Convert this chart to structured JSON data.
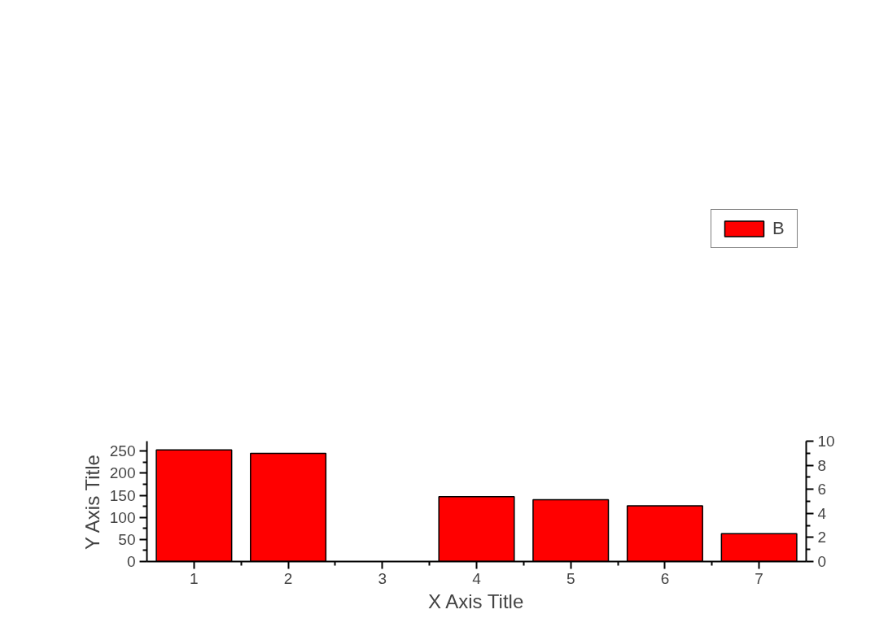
{
  "chart_data": {
    "type": "bar",
    "xlabel": "X Axis Title",
    "ylabel": "Y Axis Title",
    "x": [
      1,
      2,
      3,
      4,
      5,
      6,
      7
    ],
    "series": [
      {
        "name": "B",
        "color": "#ff0000",
        "values": [
          253,
          245,
          null,
          147,
          140,
          126,
          63
        ]
      }
    ],
    "xlim": [
      0.5,
      7.5
    ],
    "xticks": [
      1,
      2,
      3,
      4,
      5,
      6,
      7
    ],
    "ylim": [
      0,
      272.7
    ],
    "yticks": [
      0,
      50,
      100,
      150,
      200,
      250
    ],
    "y2lim": [
      0,
      10
    ],
    "y2ticks": [
      0,
      2,
      4,
      6,
      8,
      10
    ],
    "grid": false,
    "legend": "top right"
  }
}
